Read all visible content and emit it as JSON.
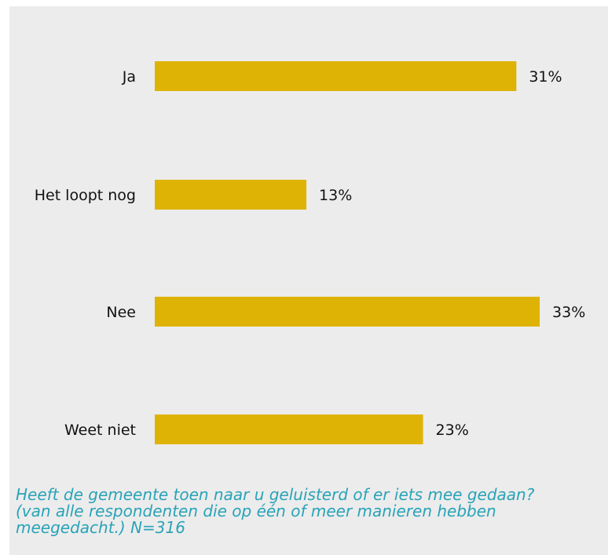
{
  "chart_data": {
    "type": "bar",
    "orientation": "horizontal",
    "categories": [
      "Ja",
      "Het loopt nog",
      "Nee",
      "Weet niet"
    ],
    "values": [
      31,
      13,
      33,
      23
    ],
    "value_labels": [
      "31%",
      "13%",
      "33%",
      "23%"
    ],
    "unit": "%",
    "bar_color": "#dfb305",
    "xlim": [
      0,
      100
    ],
    "grid": false
  },
  "caption": {
    "line1": "Heeft de gemeente toen naar u geluisterd of er iets mee gedaan?",
    "line2": "(van alle respondenten die op één of meer manieren hebben",
    "line3": "meegedacht.) N=316",
    "color": "#29a3b8"
  }
}
